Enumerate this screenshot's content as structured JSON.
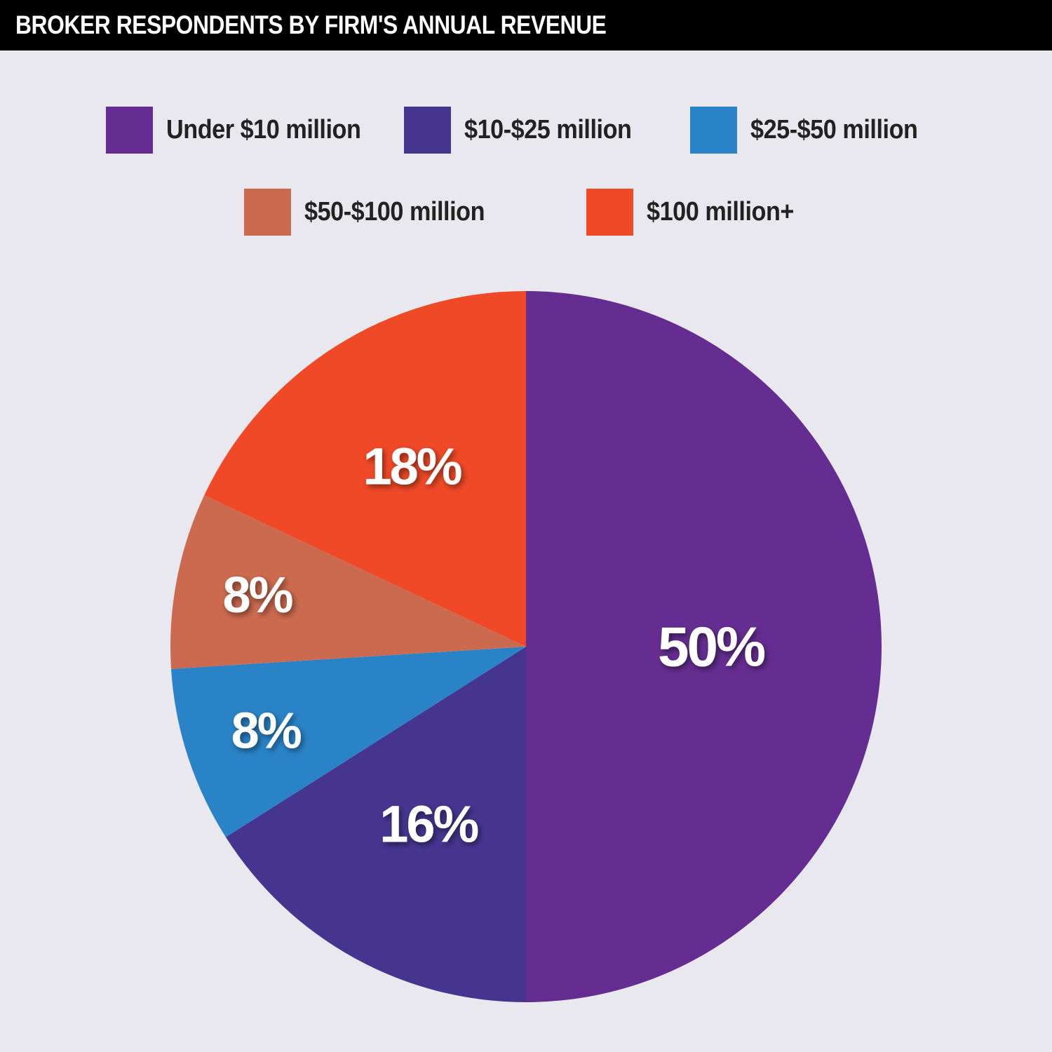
{
  "title": "BROKER RESPONDENTS BY FIRM'S ANNUAL REVENUE",
  "colors": {
    "background": "#e8e8ee",
    "title_bar": "#000000"
  },
  "chart_data": {
    "type": "pie",
    "title": "BROKER RESPONDENTS BY FIRM'S ANNUAL REVENUE",
    "legend_placement": "top",
    "categories": [
      "Under $10 million",
      "$10-$25 million",
      "$25-$50 million",
      "$50-$100 million",
      "$100 million+"
    ],
    "values": [
      50,
      16,
      8,
      8,
      18
    ],
    "labels": [
      "50%",
      "16%",
      "8%",
      "8%",
      "18%"
    ],
    "colors": [
      "#652d91",
      "#45358f",
      "#2a83c7",
      "#cb6a4e",
      "#ef4927"
    ]
  }
}
